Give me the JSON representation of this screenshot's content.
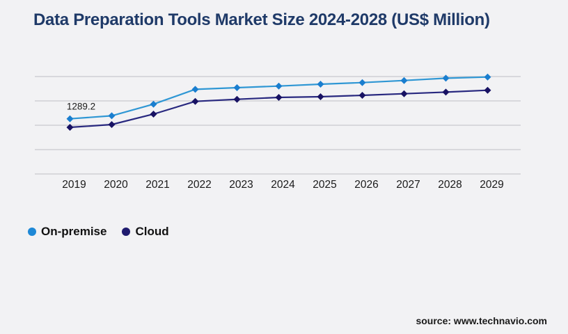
{
  "page": {
    "background_color": "#f2f2f4",
    "gridline_color": "#c9c9ce",
    "text_color": "#1a1a1a"
  },
  "header": {
    "title": "Data Preparation Tools Market Size 2024-2028 (US$ Million)",
    "title_color": "#1f3a68"
  },
  "chart_data": {
    "type": "line",
    "title": "Data Preparation Tools Market Size 2024-2028 (US$ Million)",
    "categories": [
      "2019",
      "2020",
      "2021",
      "2022",
      "2023",
      "2024",
      "2025",
      "2026",
      "2027",
      "2028",
      "2029"
    ],
    "series": [
      {
        "name": "On-premise",
        "line_color": "#2f97d4",
        "marker_color": "#1a7ecf",
        "legend_color": "#1e88d6",
        "marker_shape": "diamond",
        "values": [
          1289.2,
          1359.1,
          1630.6,
          1976.9,
          2015.9,
          2053.3,
          2097.2,
          2134.5,
          2183.3,
          2236.9,
          2264.6
        ]
      },
      {
        "name": "Cloud",
        "line_color": "#28287f",
        "marker_color": "#181263",
        "legend_color": "#1f1b6e",
        "marker_shape": "diamond",
        "values": [
          1089.2,
          1154.2,
          1398.1,
          1695.6,
          1744.4,
          1788.3,
          1804.5,
          1837.0,
          1874.4,
          1911.8,
          1955.7
        ]
      }
    ],
    "annotation": {
      "text": "1289.2",
      "series_index": 0,
      "point_index": 0
    },
    "xlabel": "",
    "ylabel": "",
    "ylim": [
      0,
      2276
    ],
    "grid": true,
    "gridline_count": 5,
    "y_axis_visible": false,
    "legend_position": "bottom-left"
  },
  "footer": {
    "source_label": "source: www.technavio.com"
  }
}
